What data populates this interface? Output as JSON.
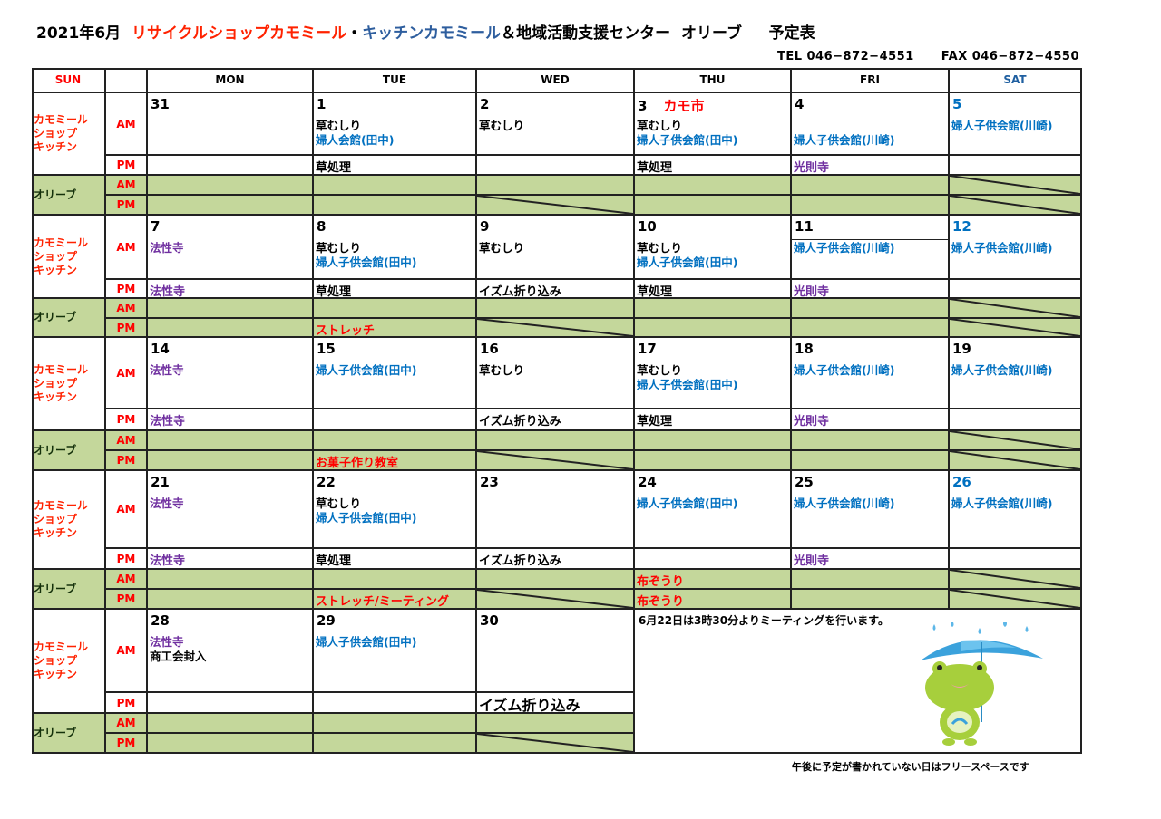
{
  "title": {
    "date": "2021年6月",
    "shop": "リサイクルショップカモミール",
    "sep": "・",
    "kitchen": "キッチンカモミール",
    "rest": "＆地域活動支援センター  オリーブ     予定表"
  },
  "contact": {
    "tel": "TEL  046−872−4551",
    "fax": "FAX  046−872−4550"
  },
  "colors": {
    "k": "#000000",
    "b": "#0070c0",
    "p": "#7030a0",
    "r": "#ff0000",
    "sat": "#0070c0",
    "sun": "#ff0000",
    "olive_bg": "#c4d79b"
  },
  "headers": [
    "SUN",
    "",
    "MON",
    "TUE",
    "WED",
    "THU",
    "FRI",
    "SAT"
  ],
  "group_labels": {
    "kamomile": "カモミール\nショップ\nキッチン",
    "olive": "オリーブ",
    "am": "AM",
    "pm": "PM"
  },
  "weeks": [
    {
      "days": [
        {
          "date": "31",
          "am": [],
          "pm": []
        },
        {
          "date": "1",
          "am": [
            [
              "草むしり",
              "k"
            ],
            [
              "婦人会館(田中)",
              "b"
            ]
          ],
          "pm": [
            [
              "草処理",
              "k"
            ]
          ]
        },
        {
          "date": "2",
          "am": [
            [
              "草むしり",
              "k"
            ]
          ],
          "pm": [],
          "olive_pm_slash": true
        },
        {
          "date": "3",
          "event": "カモ市",
          "am": [
            [
              "草むしり",
              "k"
            ],
            [
              "婦人子供会館(田中)",
              "b"
            ]
          ],
          "pm": [
            [
              "草処理",
              "k"
            ]
          ]
        },
        {
          "date": "4",
          "am": [
            [
              "",
              ""
            ],
            [
              "婦人子供会館(川崎)",
              "b"
            ]
          ],
          "pm": [
            [
              "光則寺",
              "p"
            ]
          ]
        },
        {
          "date": "5",
          "sat": true,
          "am": [
            [
              "婦人子供会館(川崎)",
              "b"
            ]
          ],
          "pm": [],
          "olive_am_slash": true,
          "olive_pm_slash": true
        }
      ]
    },
    {
      "days": [
        {
          "date": "7",
          "am": [
            [
              "法性寺",
              "p"
            ]
          ],
          "pm": [
            [
              "法性寺",
              "p"
            ]
          ]
        },
        {
          "date": "8",
          "am": [
            [
              "草むしり",
              "k"
            ],
            [
              "婦人子供会館(田中)",
              "b"
            ]
          ],
          "pm": [
            [
              "草処理",
              "k"
            ]
          ],
          "olive_pm": [
            [
              "ストレッチ",
              "r"
            ]
          ]
        },
        {
          "date": "9",
          "am": [
            [
              "草むしり",
              "k"
            ]
          ],
          "pm": [
            [
              "イズム折り込み",
              "k"
            ]
          ],
          "olive_pm_slash": true
        },
        {
          "date": "10",
          "am": [
            [
              "草むしり",
              "k"
            ],
            [
              "婦人子供会館(田中)",
              "b"
            ]
          ],
          "pm": [
            [
              "草処理",
              "k"
            ]
          ]
        },
        {
          "date": "11",
          "am": [
            [
              "婦人子供会館(川崎)",
              "b"
            ]
          ],
          "pm": [
            [
              "光則寺",
              "p"
            ]
          ]
        },
        {
          "date": "12",
          "sat": true,
          "am": [
            [
              "婦人子供会館(川崎)",
              "b"
            ]
          ],
          "pm": [],
          "olive_am_slash": true,
          "olive_pm_slash": true
        }
      ]
    },
    {
      "days": [
        {
          "date": "14",
          "am": [
            [
              "法性寺",
              "p"
            ]
          ],
          "pm": [
            [
              "法性寺",
              "p"
            ]
          ]
        },
        {
          "date": "15",
          "am": [
            [
              "婦人子供会館(田中)",
              "b"
            ]
          ],
          "pm": [],
          "olive_pm": [
            [
              "お菓子作り教室",
              "r"
            ]
          ]
        },
        {
          "date": "16",
          "am": [
            [
              "草むしり",
              "k"
            ]
          ],
          "pm": [
            [
              "イズム折り込み",
              "k"
            ]
          ],
          "olive_pm_slash": true
        },
        {
          "date": "17",
          "am": [
            [
              "草むしり",
              "k"
            ],
            [
              "婦人子供会館(田中)",
              "b"
            ]
          ],
          "pm": [
            [
              "草処理",
              "k"
            ]
          ]
        },
        {
          "date": "18",
          "am": [
            [
              "婦人子供会館(川崎)",
              "b"
            ]
          ],
          "pm": [
            [
              "光則寺",
              "p"
            ]
          ]
        },
        {
          "date": "19",
          "am": [
            [
              "婦人子供会館(川崎)",
              "b"
            ]
          ],
          "pm": [],
          "olive_am_slash": true,
          "olive_pm_slash": true
        }
      ]
    },
    {
      "days": [
        {
          "date": "21",
          "am": [
            [
              "法性寺",
              "p"
            ]
          ],
          "pm": [
            [
              "法性寺",
              "p"
            ]
          ]
        },
        {
          "date": "22",
          "am": [
            [
              "草むしり",
              "k"
            ],
            [
              "婦人子供会館(田中)",
              "b"
            ]
          ],
          "pm": [
            [
              "草処理",
              "k"
            ]
          ],
          "olive_pm": [
            [
              "ストレッチ/ミーティング",
              "r"
            ]
          ]
        },
        {
          "date": "23",
          "am": [],
          "pm": [
            [
              "イズム折り込み",
              "k"
            ]
          ],
          "olive_pm_slash": true
        },
        {
          "date": "24",
          "am": [
            [
              "婦人子供会館(田中)",
              "b"
            ]
          ],
          "pm": [],
          "olive_am": [
            [
              "布ぞうり",
              "r"
            ]
          ],
          "olive_pm": [
            [
              "布ぞうり",
              "r"
            ]
          ]
        },
        {
          "date": "25",
          "am": [
            [
              "婦人子供会館(川崎)",
              "b"
            ]
          ],
          "pm": [
            [
              "光則寺",
              "p"
            ]
          ]
        },
        {
          "date": "26",
          "sat": true,
          "am": [
            [
              "婦人子供会館(川崎)",
              "b"
            ]
          ],
          "pm": [],
          "olive_am_slash": true,
          "olive_pm_slash": true
        }
      ]
    },
    {
      "days": [
        {
          "date": "28",
          "am": [
            [
              "法性寺",
              "p"
            ],
            [
              "商工会封入",
              "k"
            ]
          ],
          "pm": []
        },
        {
          "date": "29",
          "am": [
            [
              "婦人子供会館(田中)",
              "b"
            ]
          ],
          "pm": []
        },
        {
          "date": "30",
          "am": [],
          "pm": [
            [
              "イズム折り込み",
              "k"
            ]
          ],
          "pm_big": true,
          "olive_pm_slash": true
        }
      ],
      "note": "6月22日は3時30分よりミーティングを行います。"
    }
  ],
  "footer": "午後に予定が書かれていない日はフリースペースです",
  "illustration": "frog-with-umbrella-icon"
}
